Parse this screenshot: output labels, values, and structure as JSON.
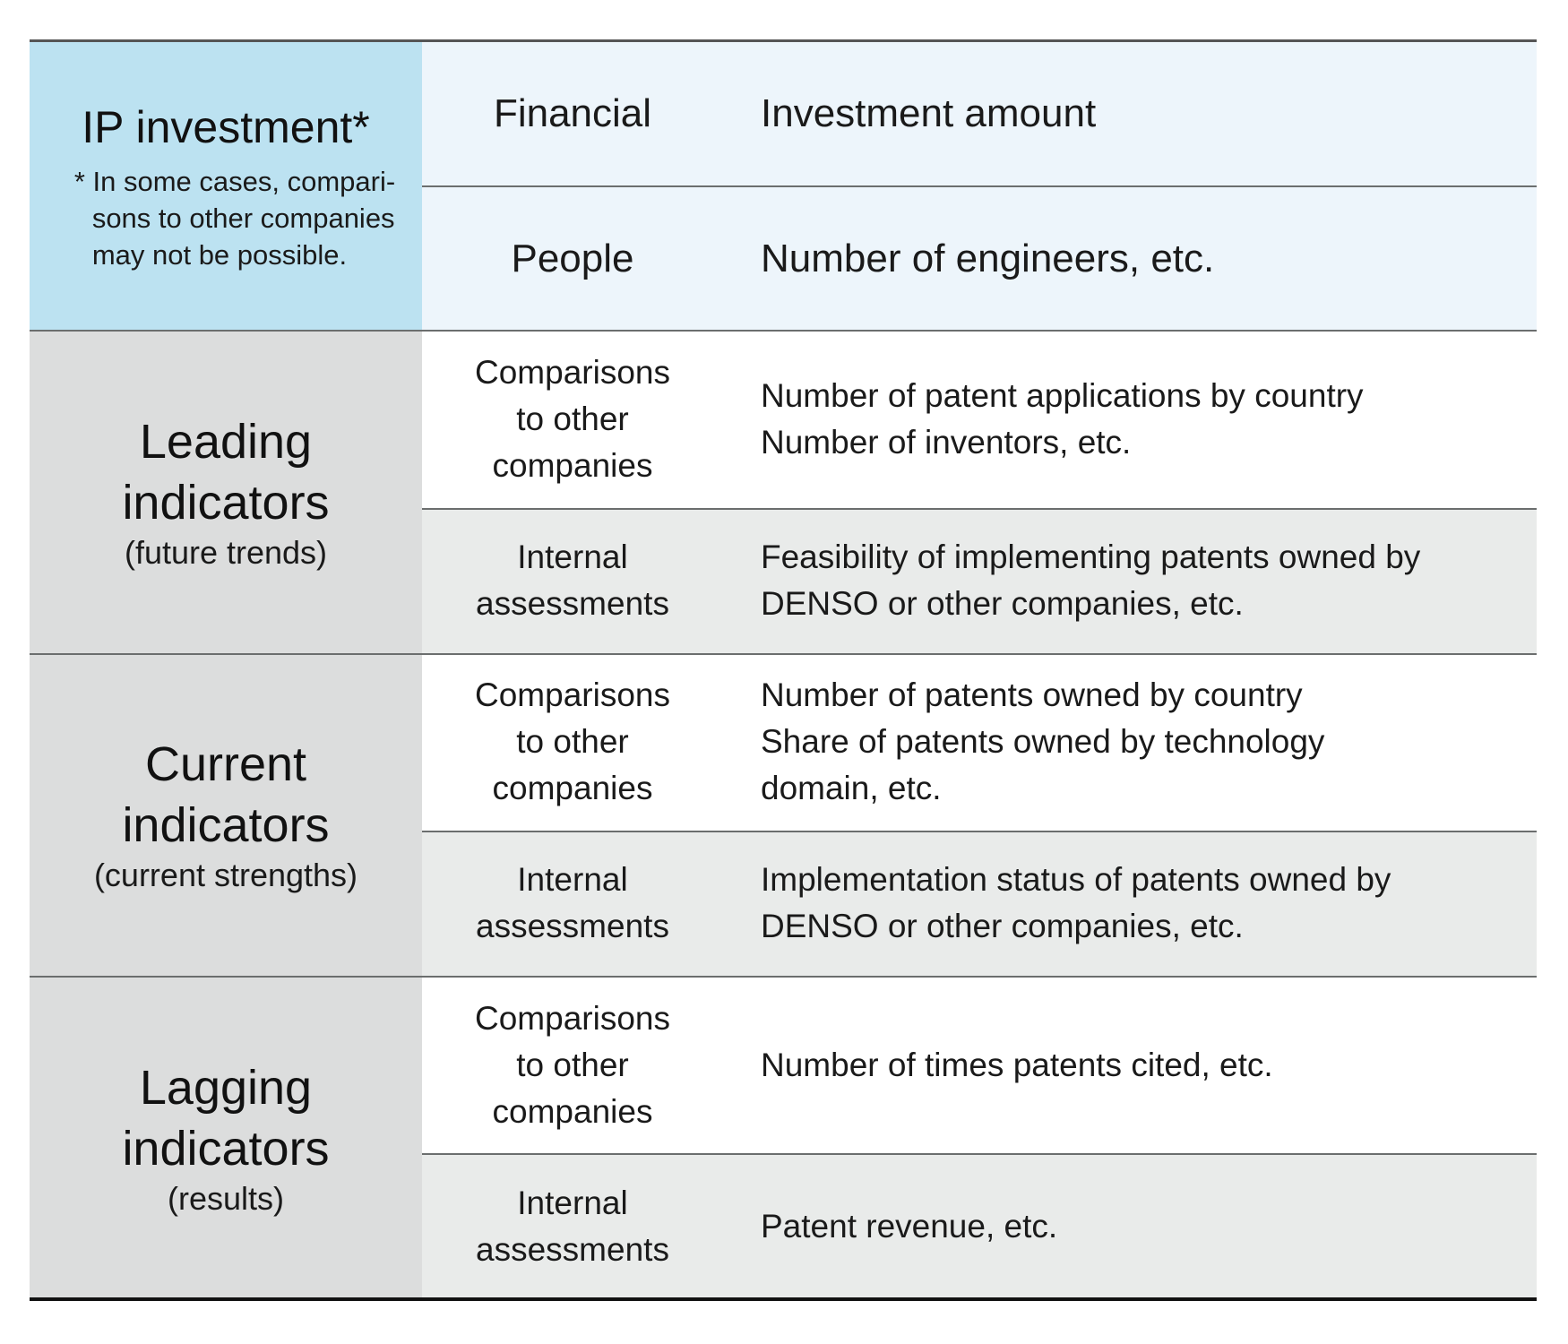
{
  "colors": {
    "ip_header": "#bce2f1",
    "ip_rows": "#edf5fb",
    "indicator_header": "#dcdddd",
    "internal_rows": "#e9ebea",
    "white_rows": "#ffffff",
    "rule": "#6b6e6e",
    "bottom_rule": "#111111"
  },
  "ip": {
    "title": "IP investment*",
    "footnote_lines": [
      "* In some cases, compari-",
      "sons to other companies",
      "may not be possible."
    ],
    "rows": [
      {
        "category": "Financial",
        "detail": [
          "Investment amount"
        ]
      },
      {
        "category": "People",
        "detail": [
          "Number of engineers, etc."
        ]
      }
    ]
  },
  "groups": [
    {
      "title_lines": [
        "Leading",
        "indicators"
      ],
      "subtitle": "(future trends)",
      "rows": [
        {
          "category": [
            "Comparisons",
            "to other",
            "companies"
          ],
          "detail": [
            "Number of patent applications by country",
            "Number of inventors, etc."
          ]
        },
        {
          "category": [
            "Internal",
            "assessments"
          ],
          "detail": [
            "Feasibility of implementing patents owned by",
            "DENSO or other companies, etc."
          ]
        }
      ]
    },
    {
      "title_lines": [
        "Current",
        "indicators"
      ],
      "subtitle": "(current strengths)",
      "rows": [
        {
          "category": [
            "Comparisons",
            "to other",
            "companies"
          ],
          "detail": [
            "Number of patents owned by country",
            "Share of patents owned by technology",
            "domain, etc."
          ]
        },
        {
          "category": [
            "Internal",
            "assessments"
          ],
          "detail": [
            "Implementation status of patents owned by",
            "DENSO or other companies, etc."
          ]
        }
      ]
    },
    {
      "title_lines": [
        "Lagging",
        "indicators"
      ],
      "subtitle": "(results)",
      "rows": [
        {
          "category": [
            "Comparisons",
            "to other",
            "companies"
          ],
          "detail": [
            "Number of times patents cited, etc."
          ]
        },
        {
          "category": [
            "Internal",
            "assessments"
          ],
          "detail": [
            "Patent revenue, etc."
          ]
        }
      ]
    }
  ]
}
